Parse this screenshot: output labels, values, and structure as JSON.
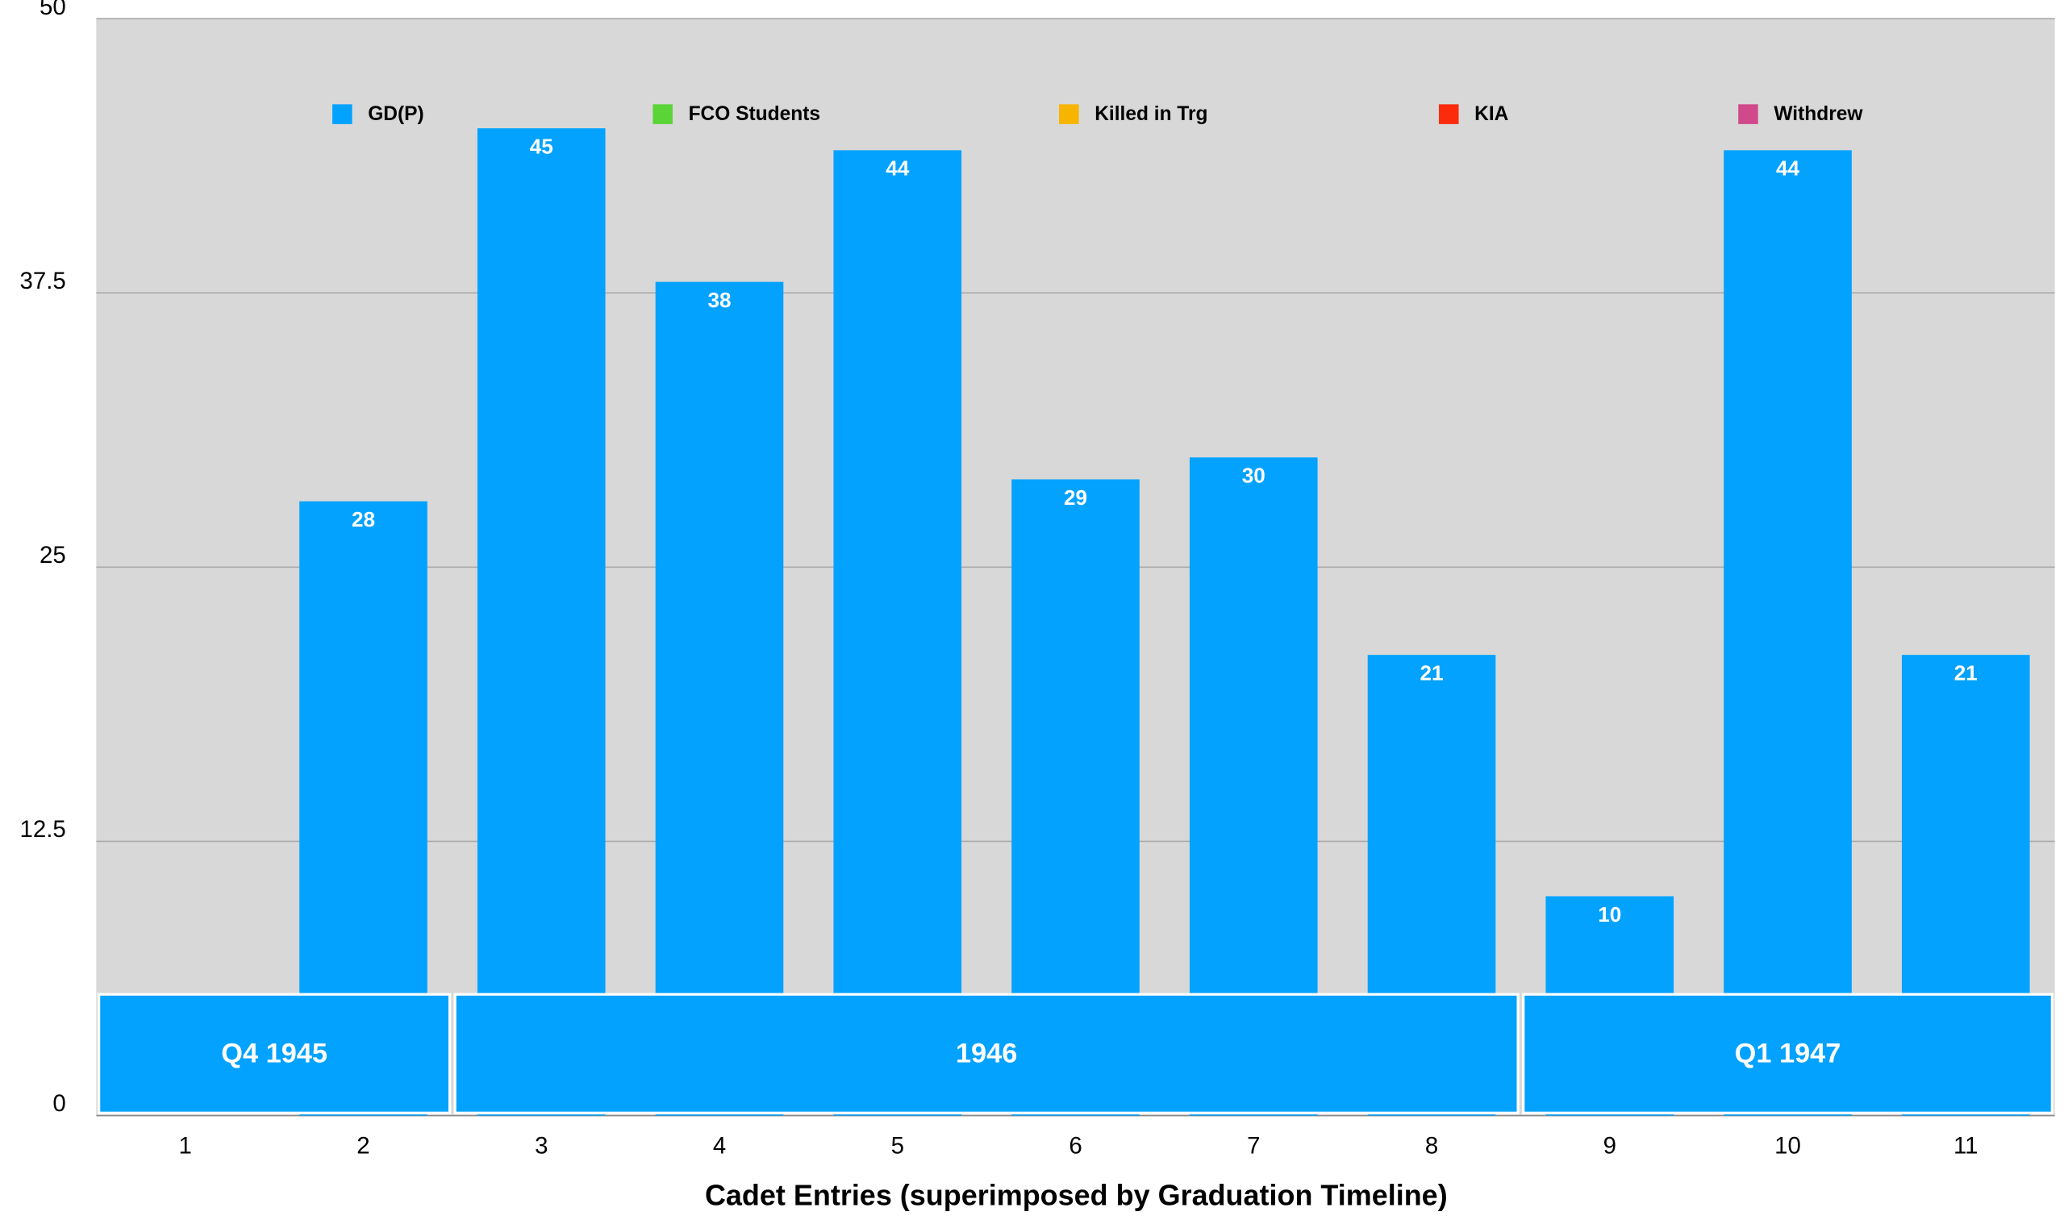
{
  "chart_data": {
    "type": "bar",
    "x_label": "Cadet Entries (superimposed by Graduation Timeline)",
    "categories": [
      "1",
      "2",
      "3",
      "4",
      "5",
      "6",
      "7",
      "8",
      "9",
      "10",
      "11"
    ],
    "series": [
      {
        "name": "GD(P)",
        "color": "#03a2ff",
        "values": [
          null,
          28,
          45,
          38,
          44,
          29,
          30,
          21,
          10,
          44,
          21
        ]
      },
      {
        "name": "FCO Students",
        "color": "#5ad436",
        "values": [
          null,
          null,
          null,
          null,
          null,
          null,
          null,
          null,
          null,
          null,
          null
        ]
      },
      {
        "name": "Killed in Trg",
        "color": "#f7b500",
        "values": [
          null,
          null,
          null,
          null,
          null,
          null,
          null,
          null,
          null,
          null,
          null
        ]
      },
      {
        "name": "KIA",
        "color": "#fb2b0c",
        "values": [
          null,
          null,
          null,
          null,
          null,
          null,
          null,
          null,
          null,
          null,
          null
        ]
      },
      {
        "name": "Withdrew",
        "color": "#d0498a",
        "values": [
          null,
          null,
          null,
          null,
          null,
          null,
          null,
          null,
          null,
          null,
          null
        ]
      }
    ],
    "ylim": [
      0,
      50
    ],
    "yticks": [
      0,
      12.5,
      25,
      37.5,
      50
    ],
    "grid": true,
    "legend": "top",
    "timeline": [
      {
        "label": "Q4 1945",
        "start": "1",
        "end": "2"
      },
      {
        "label": "1946",
        "start": "3",
        "end": "8"
      },
      {
        "label": "Q1 1947",
        "start": "9",
        "end": "11"
      }
    ]
  }
}
